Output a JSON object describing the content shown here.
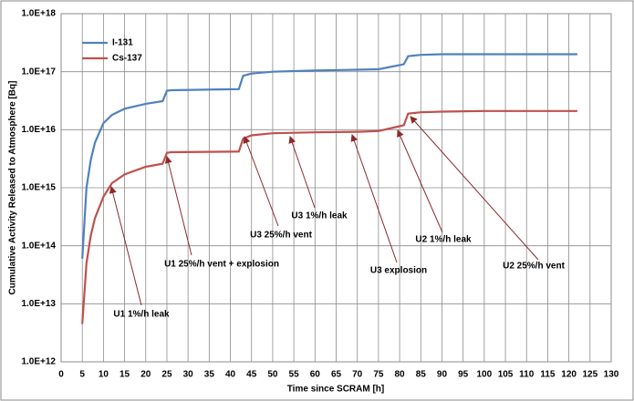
{
  "chart_data": {
    "type": "line",
    "xlabel": "Time since SCRAM [h]",
    "ylabel": "Cumulative  Activity Released to Atmosphere  [Bq]",
    "x": [
      5,
      6,
      7,
      8,
      10,
      12,
      15,
      20,
      24,
      25,
      26,
      42,
      43,
      45,
      50,
      60,
      70,
      75,
      80,
      81,
      82,
      85,
      90,
      100,
      122
    ],
    "series": [
      {
        "name": "I-131",
        "color": "#4f81bd",
        "values": [
          60000000000000.0,
          1000000000000000.0,
          3000000000000000.0,
          6000000000000000.0,
          1.3e+16,
          1.8e+16,
          2.3e+16,
          2.8e+16,
          3.1e+16,
          4.7e+16,
          4.8e+16,
          5e+16,
          8.5e+16,
          9.3e+16,
          1e+17,
          1.05e+17,
          1.08e+17,
          1.1e+17,
          1.3e+17,
          1.35e+17,
          1.85e+17,
          1.95e+17,
          2e+17,
          2e+17,
          2e+17
        ]
      },
      {
        "name": "Cs-137",
        "color": "#c0504d",
        "values": [
          4500000000000.0,
          50000000000000.0,
          150000000000000.0,
          300000000000000.0,
          700000000000000.0,
          1200000000000000.0,
          1700000000000000.0,
          2300000000000000.0,
          2600000000000000.0,
          4000000000000000.0,
          4100000000000000.0,
          4200000000000000.0,
          7000000000000000.0,
          8000000000000000.0,
          8700000000000000.0,
          9000000000000000.0,
          9200000000000000.0,
          9500000000000000.0,
          1.15e+16,
          1.2e+16,
          1.9e+16,
          2e+16,
          2.05e+16,
          2.1e+16,
          2.1e+16
        ]
      }
    ],
    "xlim": [
      0,
      130
    ],
    "xticks": [
      0,
      5,
      10,
      15,
      20,
      25,
      30,
      35,
      40,
      45,
      50,
      55,
      60,
      65,
      70,
      75,
      80,
      85,
      90,
      95,
      100,
      105,
      110,
      115,
      120,
      125,
      130
    ],
    "ylim": [
      1000000000000.0,
      1e+18
    ],
    "yticks": [
      {
        "value": 1000000000000.0,
        "label": "1.0E+12"
      },
      {
        "value": 10000000000000.0,
        "label": "1.0E+13"
      },
      {
        "value": 100000000000000.0,
        "label": "1.0E+14"
      },
      {
        "value": 1000000000000000.0,
        "label": "1.0E+15"
      },
      {
        "value": 1e+16,
        "label": "1.0E+16"
      },
      {
        "value": 1e+17,
        "label": "1.0E+17"
      },
      {
        "value": 1e+18,
        "label": "1.0E+18"
      }
    ],
    "log_y": true,
    "grid": true,
    "legend": "upper left",
    "annotations": [
      "U1 1%/h leak",
      "U1 25%/h vent + explosion",
      "U3 25%/h vent",
      "U3 1%/h leak",
      "U3 explosion",
      "U2 1%/h leak",
      "U2 25%/h vent"
    ]
  }
}
